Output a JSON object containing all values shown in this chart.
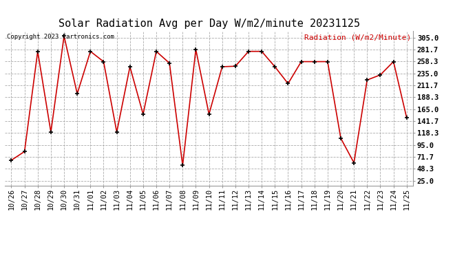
{
  "title": "Solar Radiation Avg per Day W/m2/minute 20231125",
  "copyright": "Copyright 2023 Cartronics.com",
  "legend_label": "Radiation (W/m2/Minute)",
  "dates": [
    "10/26",
    "10/27",
    "10/28",
    "10/29",
    "10/30",
    "10/31",
    "11/01",
    "11/02",
    "11/03",
    "11/04",
    "11/05",
    "11/06",
    "11/07",
    "11/08",
    "11/09",
    "11/10",
    "11/11",
    "11/12",
    "11/13",
    "11/14",
    "11/15",
    "11/16",
    "11/17",
    "11/18",
    "11/19",
    "11/20",
    "11/21",
    "11/22",
    "11/23",
    "11/24",
    "11/25"
  ],
  "values": [
    65,
    82,
    278,
    120,
    308,
    195,
    278,
    258,
    120,
    248,
    155,
    278,
    255,
    55,
    282,
    155,
    248,
    249,
    278,
    278,
    248,
    215,
    258,
    258,
    258,
    108,
    60,
    222,
    232,
    258,
    148
  ],
  "line_color": "#cc0000",
  "marker_color": "#000000",
  "marker_style": "+",
  "marker_size": 5,
  "marker_linewidth": 1.2,
  "line_width": 1.2,
  "background_color": "#ffffff",
  "grid_color": "#aaaaaa",
  "yticks": [
    25.0,
    48.3,
    71.7,
    95.0,
    118.3,
    141.7,
    165.0,
    188.3,
    211.7,
    235.0,
    258.3,
    281.7,
    305.0
  ],
  "ylim": [
    15,
    318
  ],
  "title_fontsize": 11,
  "copyright_fontsize": 6.5,
  "legend_fontsize": 8,
  "tick_fontsize": 7.5
}
